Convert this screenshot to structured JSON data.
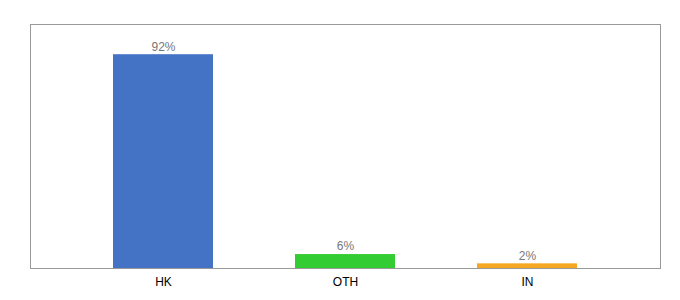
{
  "chart_data": {
    "type": "bar",
    "categories": [
      "HK",
      "OTH",
      "IN"
    ],
    "values": [
      92,
      6,
      2
    ],
    "value_labels": [
      "92%",
      "6%",
      "2%"
    ],
    "colors": [
      "#4472c4",
      "#33cc33",
      "#f5a623"
    ],
    "ylim": [
      0,
      105
    ],
    "data_labels": true,
    "tick_labels": "x"
  }
}
